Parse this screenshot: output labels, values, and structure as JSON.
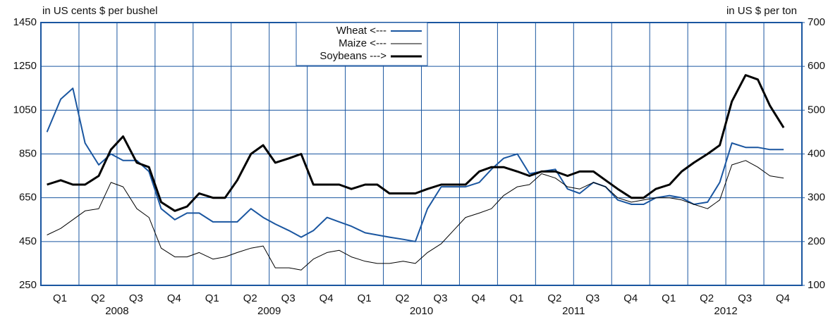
{
  "chart_data": {
    "type": "line",
    "y_label": "in US cents $ per bushel",
    "y2_label": "in US $ per ton",
    "x": [
      2008.04,
      2008.13,
      2008.21,
      2008.29,
      2008.38,
      2008.46,
      2008.54,
      2008.63,
      2008.71,
      2008.79,
      2008.88,
      2008.96,
      2009.04,
      2009.13,
      2009.21,
      2009.29,
      2009.38,
      2009.46,
      2009.54,
      2009.63,
      2009.71,
      2009.79,
      2009.88,
      2009.96,
      2010.04,
      2010.13,
      2010.21,
      2010.29,
      2010.38,
      2010.46,
      2010.54,
      2010.63,
      2010.71,
      2010.79,
      2010.88,
      2010.96,
      2011.04,
      2011.13,
      2011.21,
      2011.29,
      2011.38,
      2011.46,
      2011.54,
      2011.63,
      2011.71,
      2011.79,
      2011.88,
      2011.96,
      2012.04,
      2012.13,
      2012.21,
      2012.29,
      2012.38,
      2012.46,
      2012.54,
      2012.63,
      2012.71,
      2012.79,
      2012.88
    ],
    "xlim": [
      2008,
      2013
    ],
    "xticks": [
      {
        "value": 2008.125,
        "label": "Q1"
      },
      {
        "value": 2008.375,
        "label": "Q2"
      },
      {
        "value": 2008.625,
        "label": "Q3"
      },
      {
        "value": 2008.875,
        "label": "Q4"
      },
      {
        "value": 2009.125,
        "label": "Q1"
      },
      {
        "value": 2009.375,
        "label": "Q2"
      },
      {
        "value": 2009.625,
        "label": "Q3"
      },
      {
        "value": 2009.875,
        "label": "Q4"
      },
      {
        "value": 2010.125,
        "label": "Q1"
      },
      {
        "value": 2010.375,
        "label": "Q2"
      },
      {
        "value": 2010.625,
        "label": "Q3"
      },
      {
        "value": 2010.875,
        "label": "Q4"
      },
      {
        "value": 2011.125,
        "label": "Q1"
      },
      {
        "value": 2011.375,
        "label": "Q2"
      },
      {
        "value": 2011.625,
        "label": "Q3"
      },
      {
        "value": 2011.875,
        "label": "Q4"
      },
      {
        "value": 2012.125,
        "label": "Q1"
      },
      {
        "value": 2012.375,
        "label": "Q2"
      },
      {
        "value": 2012.625,
        "label": "Q3"
      },
      {
        "value": 2012.875,
        "label": "Q4"
      }
    ],
    "year_labels": [
      {
        "value": 2008.5,
        "label": "2008"
      },
      {
        "value": 2009.5,
        "label": "2009"
      },
      {
        "value": 2010.5,
        "label": "2010"
      },
      {
        "value": 2011.5,
        "label": "2011"
      },
      {
        "value": 2012.5,
        "label": "2012"
      }
    ],
    "xgrid": [
      2008.25,
      2008.5,
      2008.75,
      2009,
      2009.25,
      2009.5,
      2009.75,
      2010,
      2010.25,
      2010.5,
      2010.75,
      2011,
      2011.25,
      2011.5,
      2011.75,
      2012,
      2012.25,
      2012.5,
      2012.75
    ],
    "ylim": [
      250,
      1450
    ],
    "yticks": [
      250,
      450,
      650,
      850,
      1050,
      1250,
      1450
    ],
    "y2lim": [
      100,
      700
    ],
    "y2ticks": [
      100,
      200,
      300,
      400,
      500,
      600,
      700
    ],
    "grid": true,
    "grid_color": "#1a56a0",
    "legend": "top-center",
    "series": [
      {
        "name": "Wheat <---",
        "color": "#1a56a0",
        "width": 2,
        "values": [
          950,
          1100,
          1150,
          900,
          800,
          850,
          820,
          820,
          770,
          600,
          550,
          580,
          580,
          540,
          540,
          540,
          600,
          560,
          530,
          500,
          470,
          500,
          560,
          540,
          520,
          490,
          480,
          470,
          460,
          450,
          600,
          700,
          700,
          700,
          720,
          780,
          830,
          850,
          760,
          770,
          780,
          690,
          670,
          720,
          700,
          640,
          620,
          620,
          650,
          660,
          650,
          620,
          630,
          720,
          900,
          880,
          880,
          870,
          870
        ]
      },
      {
        "name": "Maize <---",
        "color": "#000000",
        "width": 1,
        "values": [
          480,
          510,
          550,
          590,
          600,
          720,
          700,
          600,
          560,
          420,
          380,
          380,
          400,
          370,
          380,
          400,
          420,
          430,
          330,
          330,
          320,
          370,
          400,
          410,
          380,
          360,
          350,
          350,
          360,
          350,
          400,
          440,
          500,
          560,
          580,
          600,
          660,
          700,
          710,
          760,
          740,
          700,
          690,
          720,
          700,
          650,
          630,
          640,
          650,
          650,
          640,
          620,
          600,
          640,
          800,
          820,
          790,
          750,
          740
        ]
      },
      {
        "name": "Soybeans --->",
        "color": "#000000",
        "width": 3,
        "axis": "y2",
        "values": [
          330,
          340,
          330,
          330,
          350,
          410,
          440,
          380,
          370,
          290,
          270,
          280,
          310,
          300,
          300,
          340,
          400,
          420,
          380,
          390,
          400,
          330,
          330,
          330,
          320,
          330,
          330,
          310,
          310,
          310,
          320,
          330,
          330,
          330,
          360,
          370,
          370,
          360,
          350,
          360,
          360,
          350,
          360,
          360,
          340,
          320,
          300,
          300,
          320,
          330,
          360,
          380,
          400,
          420,
          520,
          580,
          570,
          510,
          460
        ]
      }
    ]
  }
}
